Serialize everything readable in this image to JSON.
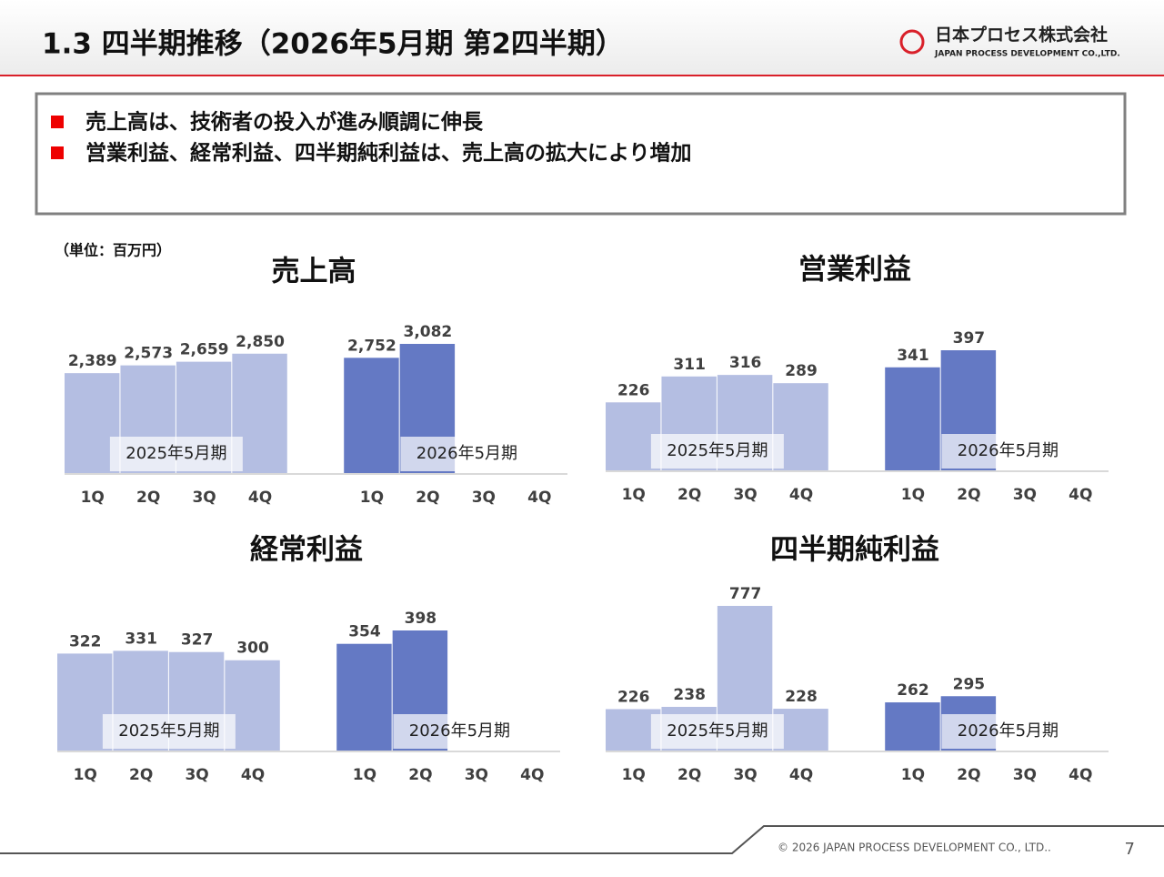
{
  "header": {
    "title": "1.3  四半期推移（2026年5月期  第2四半期）",
    "company": "日本プロセス株式会社",
    "company_en": "JAPAN PROCESS DEVELOPMENT CO.,LTD."
  },
  "bullets": [
    "売上高は、技術者の投入が進み順調に伸長",
    "営業利益、経常利益、四半期純利益は、売上高の拡大により増加"
  ],
  "unit": "（単位：百万円）",
  "footer": {
    "copyright": "© 2026 JAPAN PROCESS DEVELOPMENT CO., LTD..",
    "page": "7"
  },
  "chart_data": [
    {
      "type": "bar",
      "title": "売上高",
      "categories": [
        "1Q",
        "2Q",
        "3Q",
        "4Q",
        "1Q",
        "2Q",
        "3Q",
        "4Q"
      ],
      "series": [
        {
          "name": "2025年5月期",
          "color": "#b4bee2",
          "values": [
            2389,
            2573,
            2659,
            2850,
            null,
            null,
            null,
            null
          ],
          "value_labels": [
            "2,389",
            "2,573",
            "2,659",
            "2,850",
            null,
            null,
            null,
            null
          ]
        },
        {
          "name": "2026年5月期",
          "color": "#6479c4",
          "values": [
            null,
            null,
            null,
            null,
            2752,
            3082,
            null,
            null
          ],
          "value_labels": [
            null,
            null,
            null,
            null,
            "2,752",
            "3,082",
            null,
            null
          ]
        }
      ]
    },
    {
      "type": "bar",
      "title": "営業利益",
      "categories": [
        "1Q",
        "2Q",
        "3Q",
        "4Q",
        "1Q",
        "2Q",
        "3Q",
        "4Q"
      ],
      "series": [
        {
          "name": "2025年5月期",
          "color": "#b4bee2",
          "values": [
            226,
            311,
            316,
            289,
            null,
            null,
            null,
            null
          ]
        },
        {
          "name": "2026年5月期",
          "color": "#6479c4",
          "values": [
            null,
            null,
            null,
            null,
            341,
            397,
            null,
            null
          ]
        }
      ]
    },
    {
      "type": "bar",
      "title": "経常利益",
      "categories": [
        "1Q",
        "2Q",
        "3Q",
        "4Q",
        "1Q",
        "2Q",
        "3Q",
        "4Q"
      ],
      "series": [
        {
          "name": "2025年5月期",
          "color": "#b4bee2",
          "values": [
            322,
            331,
            327,
            300,
            null,
            null,
            null,
            null
          ]
        },
        {
          "name": "2026年5月期",
          "color": "#6479c4",
          "values": [
            null,
            null,
            null,
            null,
            354,
            398,
            null,
            null
          ]
        }
      ]
    },
    {
      "type": "bar",
      "title": "四半期純利益",
      "categories": [
        "1Q",
        "2Q",
        "3Q",
        "4Q",
        "1Q",
        "2Q",
        "3Q",
        "4Q"
      ],
      "series": [
        {
          "name": "2025年5月期",
          "color": "#b4bee2",
          "values": [
            226,
            238,
            777,
            228,
            null,
            null,
            null,
            null
          ]
        },
        {
          "name": "2026年5月期",
          "color": "#6479c4",
          "values": [
            null,
            null,
            null,
            null,
            262,
            295,
            null,
            null
          ]
        }
      ]
    }
  ]
}
